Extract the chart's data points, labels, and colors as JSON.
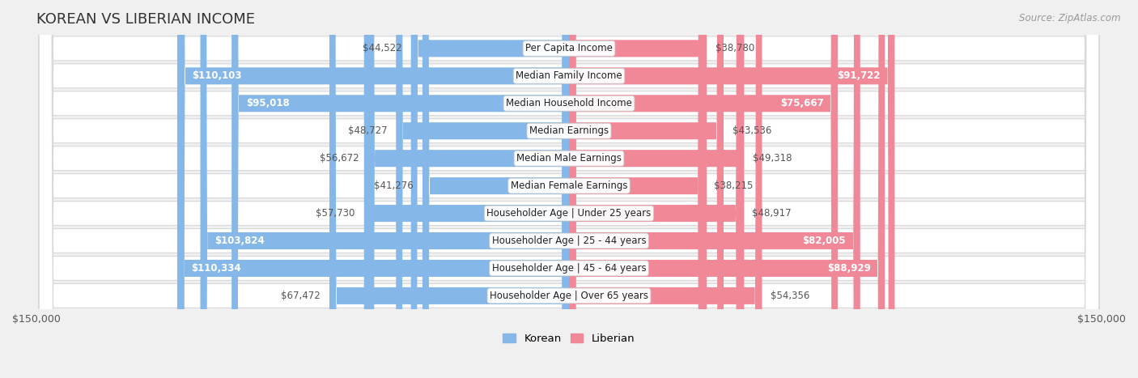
{
  "title": "KOREAN VS LIBERIAN INCOME",
  "source": "Source: ZipAtlas.com",
  "max_val": 150000,
  "categories": [
    "Per Capita Income",
    "Median Family Income",
    "Median Household Income",
    "Median Earnings",
    "Median Male Earnings",
    "Median Female Earnings",
    "Householder Age | Under 25 years",
    "Householder Age | 25 - 44 years",
    "Householder Age | 45 - 64 years",
    "Householder Age | Over 65 years"
  ],
  "korean_values": [
    44522,
    110103,
    95018,
    48727,
    56672,
    41276,
    57730,
    103824,
    110334,
    67472
  ],
  "liberian_values": [
    38780,
    91722,
    75667,
    43536,
    49318,
    38215,
    48917,
    82005,
    88929,
    54356
  ],
  "korean_color": "#85B8E8",
  "liberian_color": "#F08898",
  "bg_color": "#F0F0F0",
  "row_bg_color": "#FFFFFF",
  "row_border_color": "#D8D8D8",
  "title_color": "#333333",
  "outside_label_color": "#555555",
  "inside_label_color": "#FFFFFF",
  "label_fontsize": 8.5,
  "title_fontsize": 13,
  "source_fontsize": 8.5,
  "inside_threshold": 68000
}
